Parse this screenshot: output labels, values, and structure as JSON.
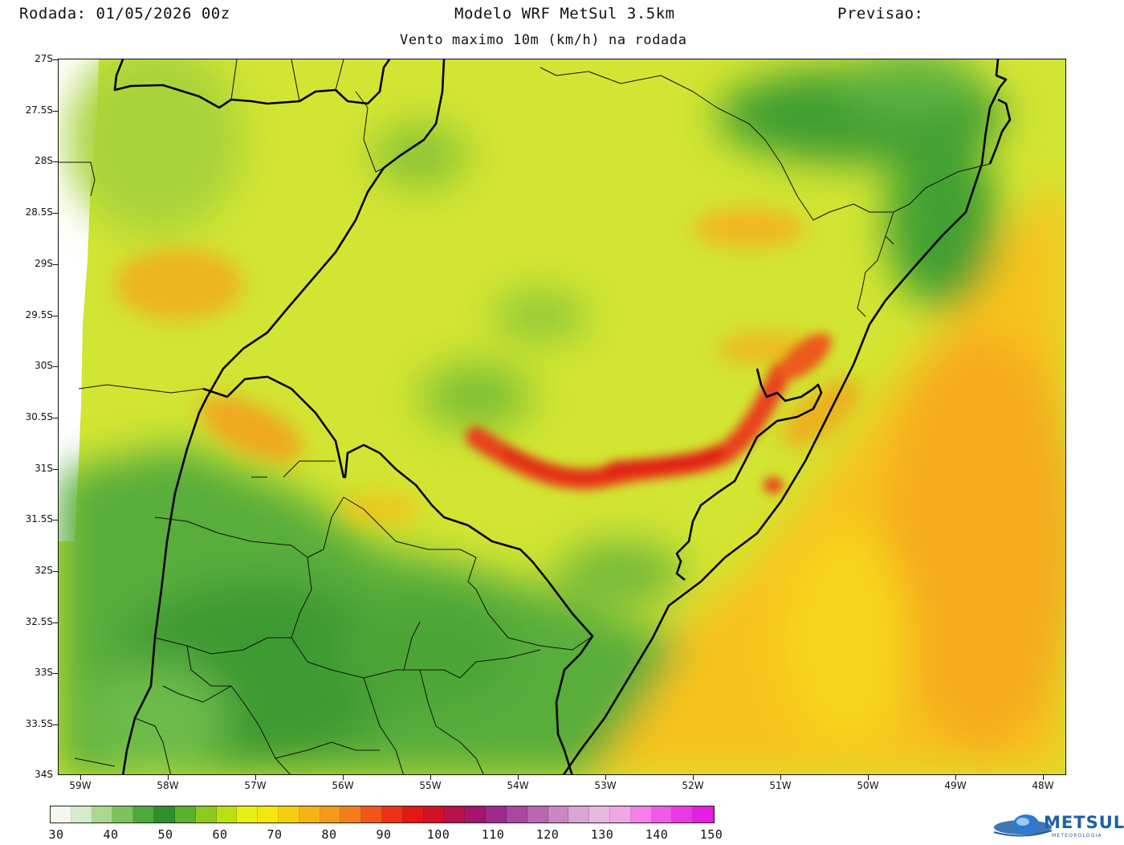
{
  "header": {
    "run_label": "Rodada: 01/05/2026 00z",
    "model_label": "Modelo WRF MetSul 3.5km",
    "forecast_label": "Previsao:",
    "subtitle": "Vento maximo 10m (km/h) na rodada"
  },
  "map": {
    "lat_labels": [
      "27S",
      "27.5S",
      "28S",
      "28.5S",
      "29S",
      "29.5S",
      "30S",
      "30.5S",
      "31S",
      "31.5S",
      "32S",
      "32.5S",
      "33S",
      "33.5S",
      "34S"
    ],
    "lon_labels": [
      "59W",
      "58W",
      "57W",
      "56W",
      "55W",
      "54W",
      "53W",
      "52W",
      "51W",
      "50W",
      "49W",
      "48W"
    ],
    "bounds": {
      "lat_top": -27,
      "lat_bottom": -34,
      "lon_left": -59.25,
      "lon_right": -47.95
    }
  },
  "colorbar": {
    "labels": [
      "30",
      "40",
      "50",
      "60",
      "70",
      "80",
      "90",
      "100",
      "110",
      "120",
      "130",
      "140",
      "150"
    ],
    "colors": [
      "#f2f8f0",
      "#d4ecc9",
      "#a9d98f",
      "#7cc35e",
      "#4ea83a",
      "#2f8f2a",
      "#5bb02b",
      "#8ccb1e",
      "#bede14",
      "#e8ef14",
      "#f5e60c",
      "#f7cf10",
      "#f6b414",
      "#f59a18",
      "#f47d1a",
      "#f0561c",
      "#ec3119",
      "#e31717",
      "#d11226",
      "#b7124a",
      "#a4156b",
      "#9e2a8b",
      "#a9489e",
      "#b865b2",
      "#c987c4",
      "#d9a5d3",
      "#e7b9df",
      "#f0a7e5",
      "#f47fe8",
      "#f05ae8",
      "#ea38e5",
      "#e21fe2"
    ]
  },
  "logo": {
    "name": "METSUL",
    "tagline": "METEOROLOGIA"
  }
}
